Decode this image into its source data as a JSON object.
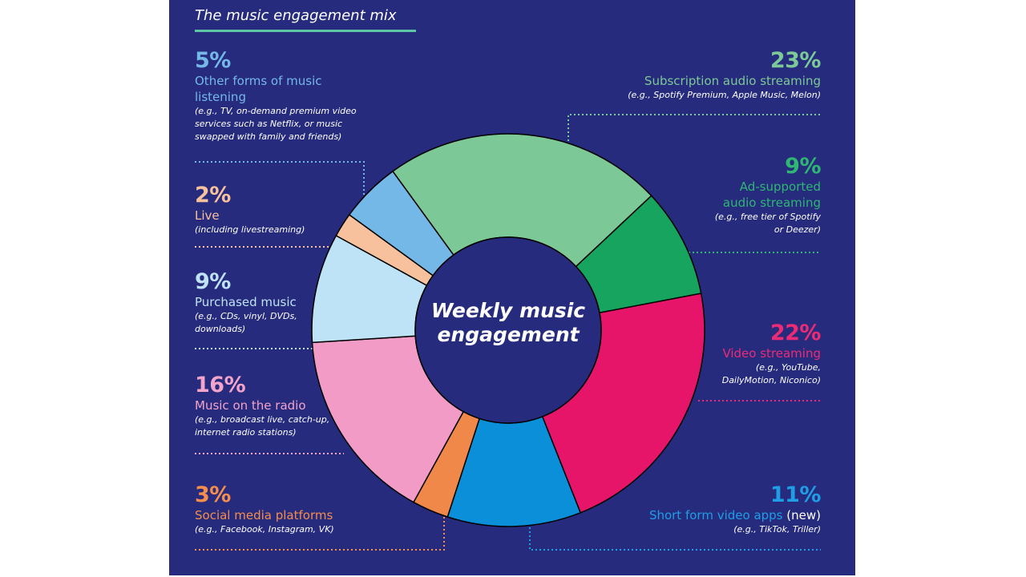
{
  "title": "The music engagement mix",
  "center_label": [
    "Weekly music",
    "engagement"
  ],
  "colors": {
    "background": "#262b7d",
    "title_underline": "#5ec6a4"
  },
  "chart_data": {
    "type": "pie",
    "variant": "donut",
    "title": "The music engagement mix",
    "center_text": "Weekly music engagement",
    "unit": "%",
    "slices": [
      {
        "key": "subscription",
        "label": "Subscription audio streaming",
        "value": 23,
        "pct_label": "23%",
        "example": "(e.g., Spotify Premium, Apple Music, Melon)",
        "color": "#7dc897",
        "text_color": "#7dc897"
      },
      {
        "key": "adsupported",
        "label": "Ad-supported audio streaming",
        "value": 9,
        "pct_label": "9%",
        "example": "(e.g., free tier of Spotify or Deezer)",
        "color": "#16a45e",
        "text_color": "#2fb673"
      },
      {
        "key": "video",
        "label": "Video streaming",
        "value": 22,
        "pct_label": "22%",
        "example": "(e.g., YouTube, DailyMotion, Niconico)",
        "color": "#e6156a",
        "text_color": "#ec2b76"
      },
      {
        "key": "shortform",
        "label": "Short form video apps",
        "label_suffix": "(new)",
        "value": 11,
        "pct_label": "11%",
        "example": "(e.g., TikTok, Triller)",
        "color": "#0a8fd8",
        "text_color": "#1f9ee6"
      },
      {
        "key": "social",
        "label": "Social media platforms",
        "value": 3,
        "pct_label": "3%",
        "example": "(e.g., Facebook, Instagram, VK)",
        "color": "#f0884a",
        "text_color": "#f58d4d"
      },
      {
        "key": "radio",
        "label": "Music on the radio",
        "value": 16,
        "pct_label": "16%",
        "example": "(e.g., broadcast live, catch-up, internet radio stations)",
        "color": "#f29bc6",
        "text_color": "#f2a4cb"
      },
      {
        "key": "purchased",
        "label": "Purchased music",
        "value": 9,
        "pct_label": "9%",
        "example": "(e.g., CDs, vinyl, DVDs, downloads)",
        "color": "#bfe3f6",
        "text_color": "#bfe3f6"
      },
      {
        "key": "live",
        "label": "Live",
        "value": 2,
        "pct_label": "2%",
        "example": "(including livestreaming)",
        "color": "#f7c19d",
        "text_color": "#f7c19d"
      },
      {
        "key": "other",
        "label": "Other forms of music listening",
        "value": 5,
        "pct_label": "5%",
        "example": "(e.g., TV, on-demand premium video services such as Netflix, or music swapped with family and friends)",
        "color": "#74b8e8",
        "text_color": "#74b8e8"
      }
    ]
  }
}
